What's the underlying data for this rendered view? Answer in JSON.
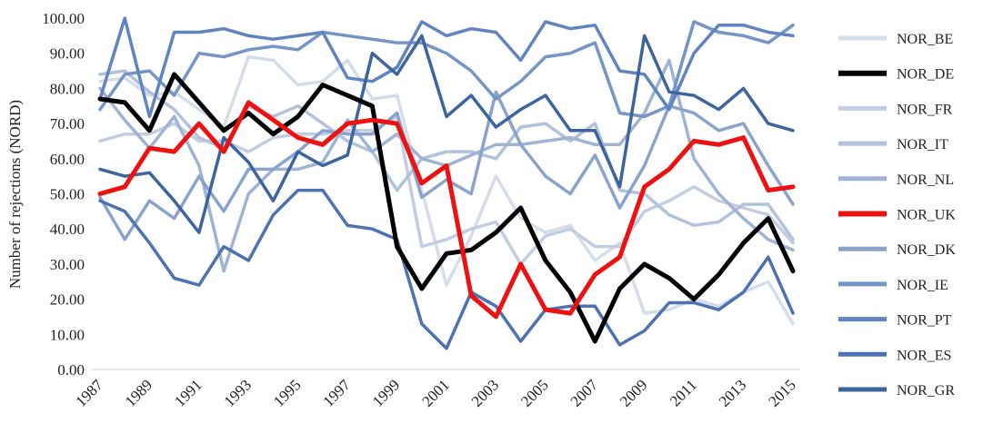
{
  "chart_data": {
    "type": "line",
    "title": "",
    "xlabel": "",
    "ylabel": "Number of rejections (NORD)",
    "ylim": [
      0,
      100
    ],
    "yticks": [
      "0.00",
      "10.00",
      "20.00",
      "30.00",
      "40.00",
      "50.00",
      "60.00",
      "70.00",
      "80.00",
      "90.00",
      "100.00"
    ],
    "x": [
      1987,
      1988,
      1989,
      1990,
      1991,
      1992,
      1993,
      1994,
      1995,
      1996,
      1997,
      1998,
      1999,
      2000,
      2001,
      2002,
      2003,
      2004,
      2005,
      2006,
      2007,
      2008,
      2009,
      2010,
      2011,
      2012,
      2013,
      2014,
      2015
    ],
    "xticks": [
      "1987",
      "1989",
      "1991",
      "1993",
      "1995",
      "1997",
      "1999",
      "2001",
      "2003",
      "2005",
      "2007",
      "2009",
      "2011",
      "2013",
      "2015"
    ],
    "grid": false,
    "legend_position": "right",
    "series": [
      {
        "name": "NOR_BE",
        "color": "#d5dcea",
        "width": 3.5,
        "values": [
          82,
          83,
          78,
          79,
          74,
          69,
          89,
          88,
          81,
          82,
          88,
          77,
          78,
          51,
          24,
          38,
          55,
          43,
          39,
          41,
          31,
          36,
          16,
          17,
          20,
          18,
          22,
          25,
          13
        ]
      },
      {
        "name": "NOR_DE",
        "color": "#000000",
        "width": 5,
        "values": [
          77,
          76,
          68,
          84,
          76,
          68,
          73,
          67,
          72,
          81,
          78,
          75,
          35,
          23,
          33,
          34,
          39,
          46,
          31,
          22,
          8,
          23,
          30,
          26,
          20,
          27,
          36,
          43,
          28
        ]
      },
      {
        "name": "NOR_FR",
        "color": "#c3cde2",
        "width": 3.5,
        "values": [
          65,
          67,
          67,
          70,
          65,
          65,
          62,
          66,
          67,
          67,
          68,
          68,
          72,
          35,
          37,
          40,
          42,
          30,
          38,
          40,
          35,
          35,
          45,
          48,
          52,
          48,
          46,
          44,
          36
        ]
      },
      {
        "name": "NOR_IT",
        "color": "#b2c1dc",
        "width": 3.5,
        "values": [
          84,
          85,
          79,
          74,
          66,
          63,
          75,
          72,
          75,
          70,
          65,
          62,
          51,
          60,
          62,
          62,
          60,
          69,
          70,
          65,
          70,
          51,
          50,
          44,
          41,
          42,
          47,
          47,
          37
        ]
      },
      {
        "name": "NOR_NL",
        "color": "#9fb3d4",
        "width": 3.5,
        "values": [
          80,
          71,
          63,
          72,
          58,
          28,
          50,
          57,
          57,
          59,
          71,
          62,
          67,
          60,
          58,
          61,
          64,
          64,
          65,
          66,
          64,
          64,
          73,
          88,
          60,
          50,
          43,
          37,
          34
        ]
      },
      {
        "name": "NOR_UK",
        "color": "#ee1111",
        "width": 5,
        "values": [
          50,
          52,
          63,
          62,
          70,
          62,
          76,
          71,
          66,
          64,
          70,
          71,
          70,
          53,
          58,
          21,
          15,
          30,
          17,
          16,
          27,
          32,
          52,
          57,
          65,
          64,
          66,
          51,
          52
        ]
      },
      {
        "name": "NOR_DK",
        "color": "#8aa3cd",
        "width": 3.5,
        "values": [
          49,
          37,
          48,
          43,
          55,
          45,
          57,
          57,
          62,
          68,
          67,
          67,
          73,
          49,
          54,
          50,
          79,
          64,
          55,
          50,
          61,
          46,
          58,
          75,
          73,
          68,
          70,
          58,
          47
        ]
      },
      {
        "name": "NOR_IE",
        "color": "#7595c6",
        "width": 3.5,
        "values": [
          74,
          84,
          85,
          78,
          90,
          89,
          91,
          92,
          91,
          96,
          95,
          94,
          93,
          93,
          90,
          85,
          77,
          82,
          89,
          90,
          93,
          73,
          72,
          75,
          99,
          96,
          95,
          93,
          98
        ]
      },
      {
        "name": "NOR_PT",
        "color": "#5f84bf",
        "width": 3.5,
        "values": [
          77,
          100,
          72,
          96,
          96,
          97,
          95,
          94,
          95,
          96,
          83,
          82,
          86,
          99,
          95,
          97,
          96,
          88,
          99,
          97,
          98,
          85,
          84,
          74,
          90,
          98,
          98,
          96,
          95
        ]
      },
      {
        "name": "NOR_ES",
        "color": "#4c72b1",
        "width": 3.5,
        "values": [
          48,
          45,
          36,
          26,
          24,
          35,
          31,
          44,
          51,
          51,
          41,
          40,
          37,
          13,
          6,
          22,
          18,
          8,
          17,
          18,
          18,
          7,
          11,
          19,
          19,
          17,
          22,
          32,
          16
        ]
      },
      {
        "name": "NOR_GR",
        "color": "#3e649f",
        "width": 3.5,
        "values": [
          57,
          55,
          56,
          48,
          39,
          66,
          59,
          48,
          62,
          58,
          61,
          90,
          84,
          95,
          72,
          78,
          69,
          74,
          78,
          68,
          68,
          52,
          95,
          79,
          78,
          74,
          80,
          70,
          68
        ]
      }
    ]
  }
}
